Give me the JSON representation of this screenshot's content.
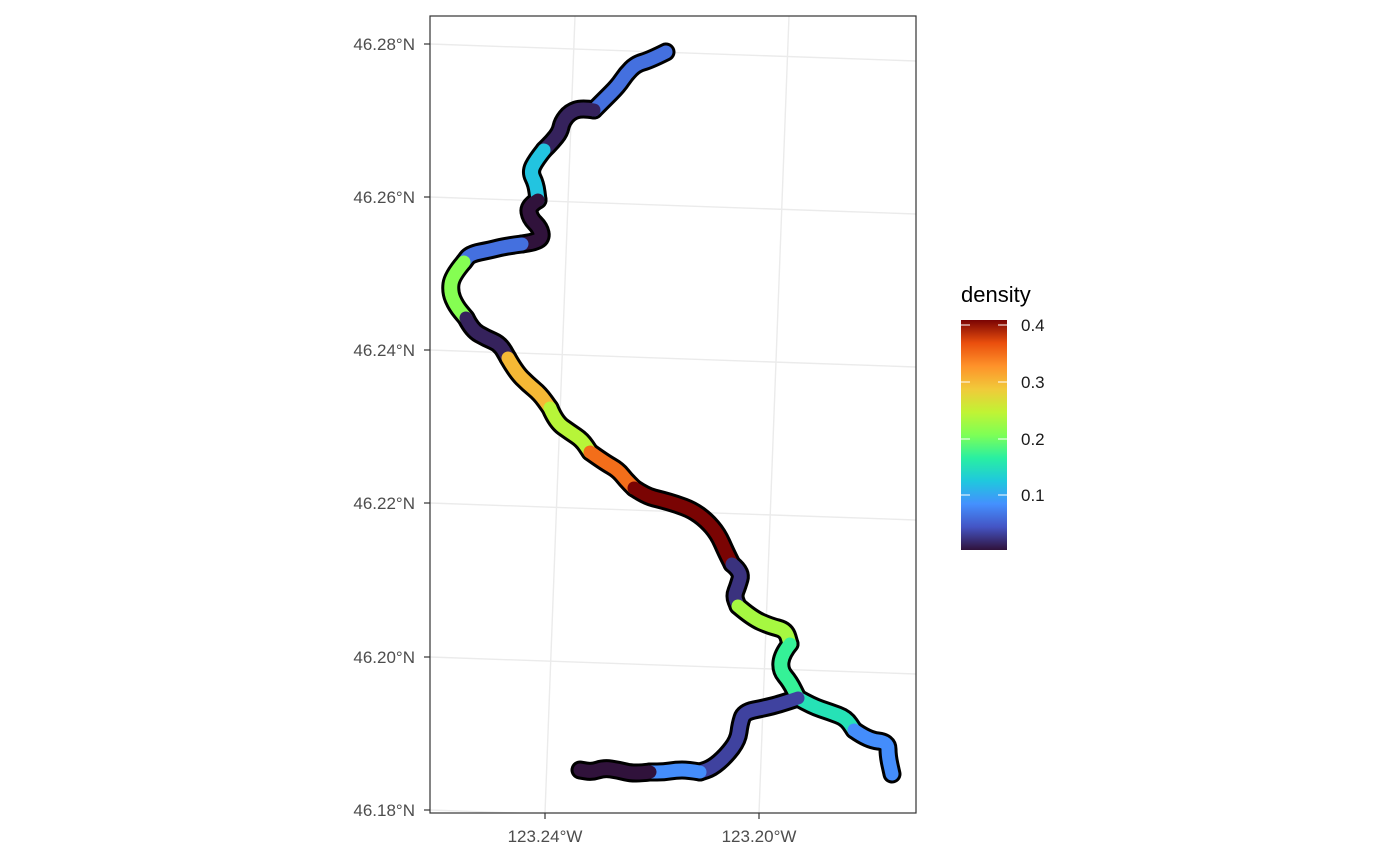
{
  "map": {
    "lat_ticks": [
      "46.28°N",
      "46.26°N",
      "46.24°N",
      "46.22°N",
      "46.20°N",
      "46.18°N"
    ],
    "lon_ticks": [
      "123.24°W",
      "123.20°W"
    ],
    "legend": {
      "title": "density",
      "labels": [
        "0.4",
        "0.3",
        "0.2",
        "0.1"
      ],
      "range": [
        0.0,
        0.41
      ],
      "palette": "turbo"
    },
    "colors": {
      "panel_border": "#333333",
      "grid": "#ebebeb",
      "outline": "#000000"
    },
    "stream_segments": [
      {
        "id": "upper-1",
        "density": 0.06
      },
      {
        "id": "upper-2",
        "density": 0.01
      },
      {
        "id": "upper-3",
        "density": 0.12
      },
      {
        "id": "upper-4",
        "density": 0.0
      },
      {
        "id": "upper-5",
        "density": 0.06
      },
      {
        "id": "upper-6",
        "density": 0.21
      },
      {
        "id": "upper-7",
        "density": 0.01
      },
      {
        "id": "upper-8",
        "density": 0.3
      },
      {
        "id": "upper-9",
        "density": 0.24
      },
      {
        "id": "mid-1",
        "density": 0.35
      },
      {
        "id": "mid-2",
        "density": 0.41
      },
      {
        "id": "mid-3",
        "density": 0.02
      },
      {
        "id": "mid-4",
        "density": 0.23
      },
      {
        "id": "mid-5",
        "density": 0.17
      },
      {
        "id": "trib-1",
        "density": 0.15
      },
      {
        "id": "trib-2",
        "density": 0.08
      },
      {
        "id": "lower-1",
        "density": 0.03
      },
      {
        "id": "lower-2",
        "density": 0.08
      },
      {
        "id": "lower-3",
        "density": 0.0
      }
    ]
  }
}
